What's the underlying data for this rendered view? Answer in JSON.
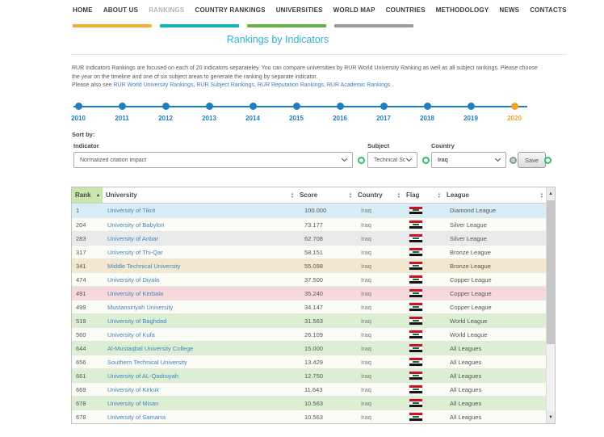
{
  "nav": {
    "items": [
      {
        "label": "HOME",
        "active": false
      },
      {
        "label": "ABOUT US",
        "active": false
      },
      {
        "label": "RANKINGS",
        "active": true
      },
      {
        "label": "COUNTRY RANKINGS",
        "active": false
      },
      {
        "label": "UNIVERSITIES",
        "active": false
      },
      {
        "label": "WORLD MAP",
        "active": false
      },
      {
        "label": "COUNTRIES",
        "active": false
      },
      {
        "label": "METHODOLOGY",
        "active": false
      },
      {
        "label": "NEWS",
        "active": false
      },
      {
        "label": "CONTACTS",
        "active": false
      }
    ],
    "bar_colors": [
      "#eeaf3c",
      "#16b2b4",
      "#67b346",
      "#9a9a9a"
    ]
  },
  "page": {
    "title": "Rankings by Indicators"
  },
  "intro": {
    "line1": "RUR Indicators Rankings are focused on each of 20 indicators separateley. You can compare universities by RUR World University Ranking as well as all subject rankings. Please choose the year on the timeline and one of six subject areas to generate the ranking by separate indicator.",
    "line2_prefix": "Please also see ",
    "links": [
      "RUR World University Rankings",
      "RUR Subject Rankings",
      "RUR Reputation Rankings",
      "RUR Academic Rankings"
    ],
    "link_separator": ", ",
    "line2_suffix": " ."
  },
  "timeline": {
    "years": [
      "2010",
      "2011",
      "2012",
      "2013",
      "2014",
      "2015",
      "2016",
      "2017",
      "2018",
      "2019",
      "2020"
    ],
    "selected": "2020",
    "line_color": "#1b7fc3",
    "selected_color": "#f2a42c"
  },
  "filters": {
    "sort_by_label": "Sort by:",
    "indicator_label": "Indicator",
    "indicator_value": "Normalized citation impact",
    "subject_label": "Subject",
    "subject_value": "Technical Sc",
    "country_label": "Country",
    "country_value": "Iraq",
    "save_label": "Save"
  },
  "table": {
    "columns": [
      "Rank",
      "University",
      "Score",
      "Country",
      "Flag",
      "League"
    ],
    "sorted_column": "Rank",
    "tints": {
      "diamond": "#d9edf7",
      "silver": "#e9eaec",
      "bronze": "#f3e8cd",
      "copper": "#f7d9db",
      "world": "#ddefd2",
      "all": "#ddefd2",
      "default": "#fcfcf6"
    },
    "rows": [
      {
        "rank": "1",
        "university": "University of Tikrit",
        "score": "100.000",
        "country": "Iraq",
        "league": "Diamond League",
        "tint": "diamond"
      },
      {
        "rank": "204",
        "university": "University of Babylon",
        "score": "73.177",
        "country": "Iraq",
        "league": "Silver League",
        "tint": null
      },
      {
        "rank": "283",
        "university": "University of Anbar",
        "score": "62.708",
        "country": "Iraq",
        "league": "Silver League",
        "tint": "silver"
      },
      {
        "rank": "317",
        "university": "University of Thi-Qar",
        "score": "58.151",
        "country": "Iraq",
        "league": "Bronze League",
        "tint": null
      },
      {
        "rank": "341",
        "university": "Middle Technical University",
        "score": "55.098",
        "country": "Iraq",
        "league": "Bronze League",
        "tint": "bronze"
      },
      {
        "rank": "474",
        "university": "University of Diyala",
        "score": "37.500",
        "country": "Iraq",
        "league": "Copper League",
        "tint": null
      },
      {
        "rank": "491",
        "university": "University of Kerbala",
        "score": "35.240",
        "country": "Iraq",
        "league": "Copper League",
        "tint": "copper"
      },
      {
        "rank": "499",
        "university": "Mustansiriyah University",
        "score": "34.147",
        "country": "Iraq",
        "league": "Copper League",
        "tint": null
      },
      {
        "rank": "519",
        "university": "University of Baghdad",
        "score": "31.563",
        "country": "Iraq",
        "league": "World League",
        "tint": "world"
      },
      {
        "rank": "560",
        "university": "University of Kufa",
        "score": "26.109",
        "country": "Iraq",
        "league": "World League",
        "tint": null
      },
      {
        "rank": "644",
        "university": "Al-Mustaqbal University College",
        "score": "15.000",
        "country": "Iraq",
        "league": "All Leagues",
        "tint": "all"
      },
      {
        "rank": "656",
        "university": "Southern Technical University",
        "score": "13.429",
        "country": "Iraq",
        "league": "All Leagues",
        "tint": null
      },
      {
        "rank": "661",
        "university": "University of AL-Qadisiyah",
        "score": "12.750",
        "country": "Iraq",
        "league": "All Leagues",
        "tint": "all"
      },
      {
        "rank": "669",
        "university": "University of Kirkuk",
        "score": "11.643",
        "country": "Iraq",
        "league": "All Leagues",
        "tint": null
      },
      {
        "rank": "678",
        "university": "University of Misan",
        "score": "10.563",
        "country": "Iraq",
        "league": "All Leagues",
        "tint": "all"
      },
      {
        "rank": "678",
        "university": "University of Samarra",
        "score": "10.563",
        "country": "Iraq",
        "league": "All Leagues",
        "tint": null
      }
    ]
  }
}
